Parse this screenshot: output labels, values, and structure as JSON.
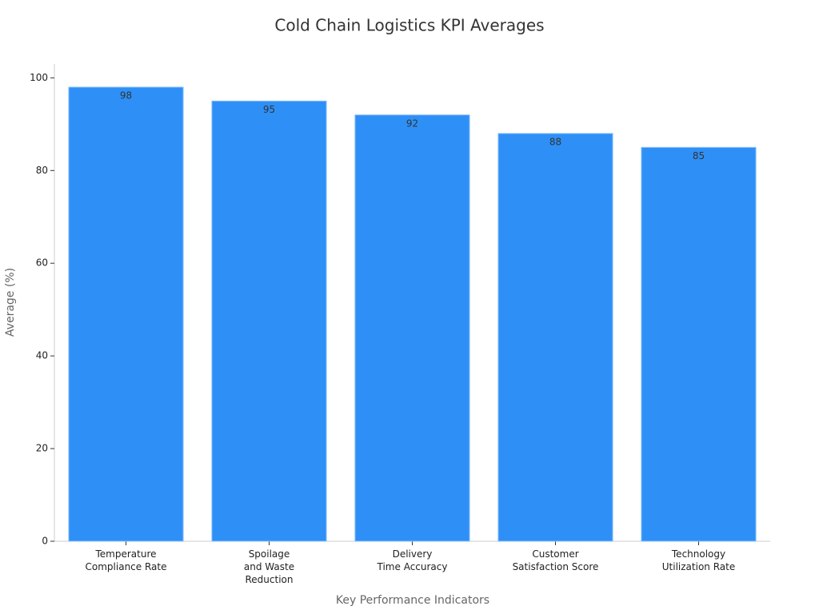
{
  "chart_data": {
    "type": "bar",
    "title": "Cold Chain Logistics KPI Averages",
    "x_label": "Key Performance Indicators",
    "y_label": "Average (%)",
    "categories": [
      "Temperature\nCompliance Rate",
      "Spoilage\nand Waste\nReduction",
      "Delivery\nTime Accuracy",
      "Customer\nSatisfaction Score",
      "Technology\nUtilization Rate"
    ],
    "values": [
      98,
      95,
      92,
      88,
      85
    ],
    "color": "#2e90f7",
    "ylim": [
      0,
      103
    ],
    "yticks": [
      0,
      20,
      40,
      60,
      80,
      100
    ],
    "grid": false
  }
}
